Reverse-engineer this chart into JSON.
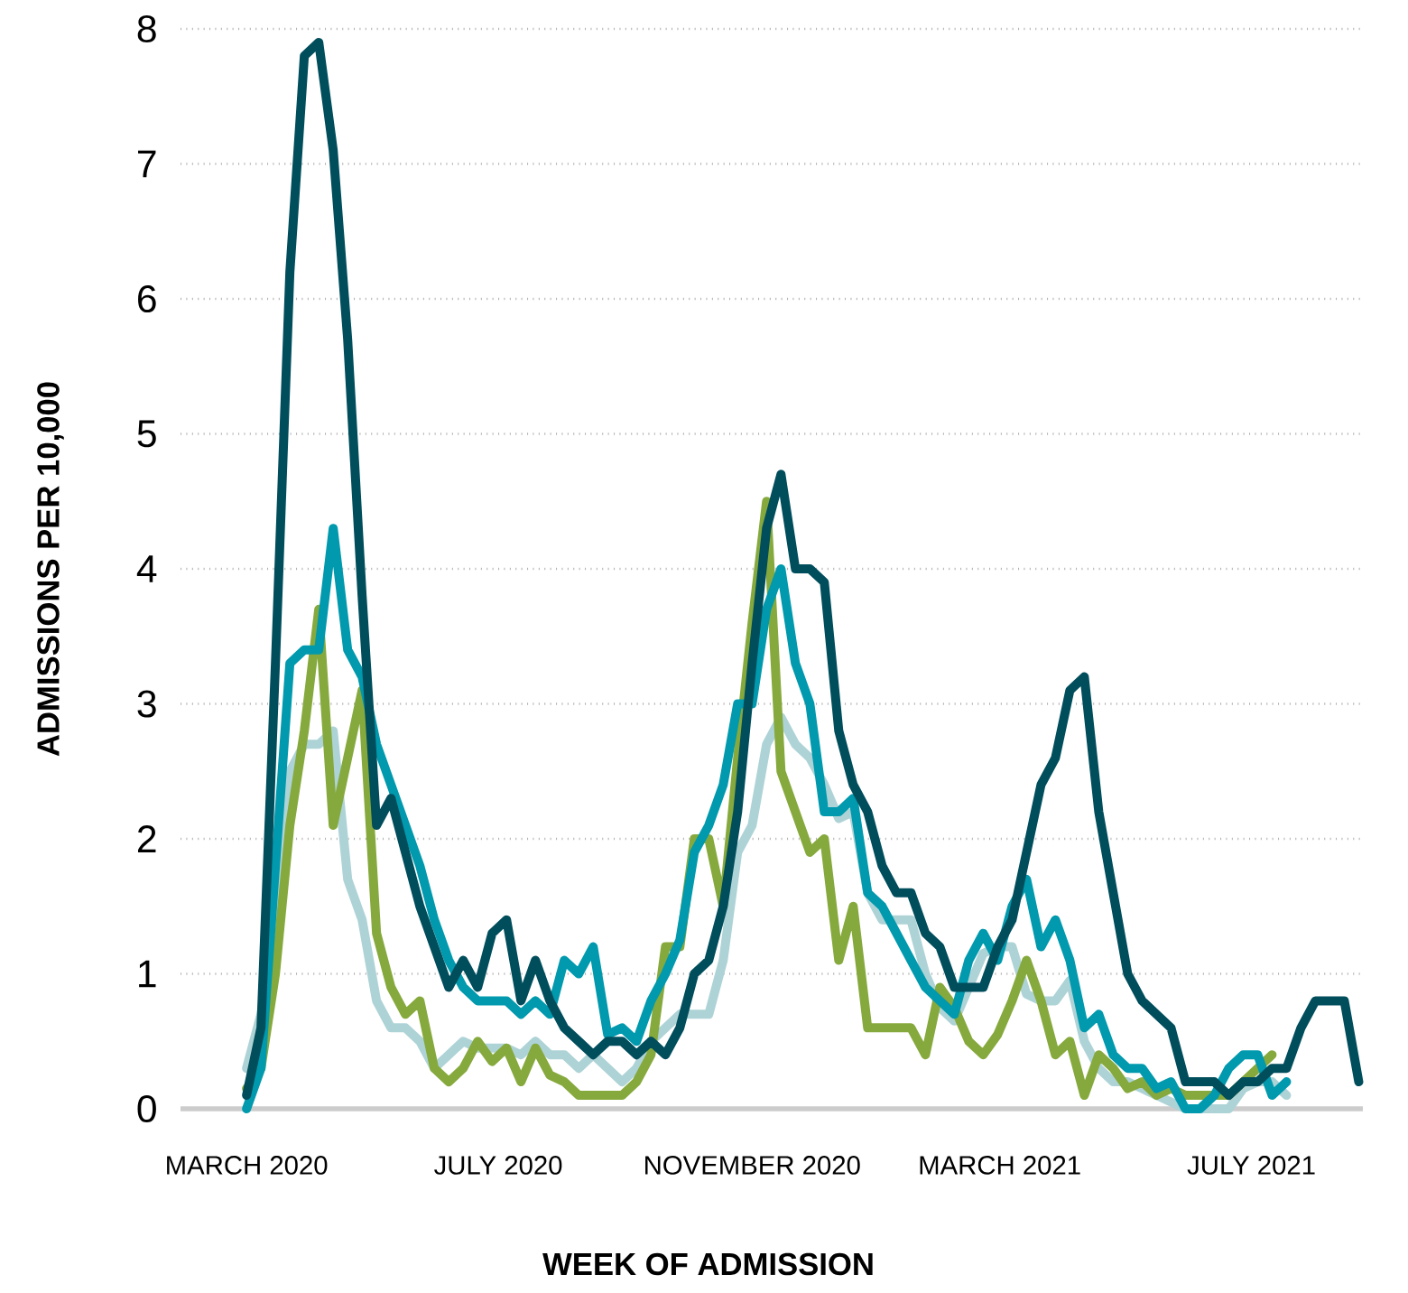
{
  "chart_data": {
    "type": "line",
    "xlabel": "WEEK OF ADMISSION",
    "ylabel": "ADMISSIONS PER 10,000",
    "x": [
      "2020-03-01",
      "2020-03-08",
      "2020-03-15",
      "2020-03-22",
      "2020-03-29",
      "2020-04-05",
      "2020-04-12",
      "2020-04-19",
      "2020-04-26",
      "2020-05-03",
      "2020-05-10",
      "2020-05-17",
      "2020-05-24",
      "2020-05-31",
      "2020-06-07",
      "2020-06-14",
      "2020-06-21",
      "2020-06-28",
      "2020-07-05",
      "2020-07-12",
      "2020-07-19",
      "2020-07-26",
      "2020-08-02",
      "2020-08-09",
      "2020-08-16",
      "2020-08-23",
      "2020-08-30",
      "2020-09-06",
      "2020-09-13",
      "2020-09-20",
      "2020-09-27",
      "2020-10-04",
      "2020-10-11",
      "2020-10-18",
      "2020-10-25",
      "2020-11-01",
      "2020-11-08",
      "2020-11-15",
      "2020-11-22",
      "2020-11-29",
      "2020-12-06",
      "2020-12-13",
      "2020-12-20",
      "2020-12-27",
      "2021-01-03",
      "2021-01-10",
      "2021-01-17",
      "2021-01-24",
      "2021-01-31",
      "2021-02-07",
      "2021-02-14",
      "2021-02-21",
      "2021-02-28",
      "2021-03-07",
      "2021-03-14",
      "2021-03-21",
      "2021-03-28",
      "2021-04-04",
      "2021-04-11",
      "2021-04-18",
      "2021-04-25",
      "2021-05-02",
      "2021-05-09",
      "2021-05-16",
      "2021-05-23",
      "2021-05-30",
      "2021-06-06",
      "2021-06-13",
      "2021-06-20",
      "2021-06-27",
      "2021-07-04",
      "2021-07-11",
      "2021-07-18",
      "2021-07-25",
      "2021-08-01",
      "2021-08-08",
      "2021-08-15",
      "2021-08-22"
    ],
    "series": [
      {
        "color": "#aed3d6",
        "values": [
          0.3,
          0.7,
          1.3,
          2.5,
          2.7,
          2.7,
          2.8,
          1.7,
          1.4,
          0.8,
          0.6,
          0.6,
          0.5,
          0.3,
          0.4,
          0.5,
          0.45,
          0.45,
          0.45,
          0.4,
          0.5,
          0.4,
          0.4,
          0.3,
          0.4,
          0.3,
          0.2,
          0.3,
          0.5,
          0.6,
          0.7,
          0.7,
          0.7,
          1.1,
          1.9,
          2.1,
          2.7,
          2.9,
          2.7,
          2.6,
          2.4,
          2.15,
          2.2,
          1.6,
          1.4,
          1.4,
          1.4,
          1.0,
          0.75,
          0.65,
          0.9,
          1.15,
          1.2,
          1.2,
          0.85,
          0.8,
          0.8,
          0.95,
          0.5,
          0.3,
          0.2,
          0.2,
          0.15,
          0.1,
          0.05,
          0,
          0,
          0,
          0,
          0.15,
          0.2,
          0.2,
          0.1,
          null,
          null,
          null,
          null,
          null
        ]
      },
      {
        "color": "#86a93d",
        "values": [
          0.15,
          0.3,
          1.0,
          2.1,
          2.8,
          3.7,
          2.1,
          2.6,
          3.1,
          1.3,
          0.9,
          0.7,
          0.8,
          0.3,
          0.2,
          0.3,
          0.5,
          0.35,
          0.45,
          0.2,
          0.45,
          0.25,
          0.2,
          0.1,
          0.1,
          0.1,
          0.1,
          0.2,
          0.4,
          1.2,
          1.2,
          2.0,
          2.0,
          1.5,
          2.6,
          3.6,
          4.5,
          2.5,
          2.2,
          1.9,
          2.0,
          1.1,
          1.5,
          0.6,
          0.6,
          0.6,
          0.6,
          0.4,
          0.9,
          0.75,
          0.5,
          0.4,
          0.55,
          0.8,
          1.1,
          0.8,
          0.4,
          0.5,
          0.1,
          0.4,
          0.3,
          0.15,
          0.2,
          0.1,
          0.15,
          0.1,
          0.1,
          0.1,
          0.1,
          0.2,
          0.3,
          0.4,
          null,
          null,
          null,
          null,
          null,
          null
        ]
      },
      {
        "color": "#0099ad",
        "values": [
          0,
          0.3,
          1.8,
          3.3,
          3.4,
          3.4,
          4.3,
          3.4,
          3.2,
          2.7,
          2.4,
          2.1,
          1.8,
          1.4,
          1.1,
          0.9,
          0.8,
          0.8,
          0.8,
          0.7,
          0.8,
          0.7,
          1.1,
          1.0,
          1.2,
          0.55,
          0.6,
          0.5,
          0.8,
          1.0,
          1.25,
          1.9,
          2.1,
          2.4,
          3.0,
          3.0,
          3.7,
          4.0,
          3.3,
          3.0,
          2.2,
          2.2,
          2.3,
          1.6,
          1.5,
          1.3,
          1.1,
          0.9,
          0.8,
          0.7,
          1.1,
          1.3,
          1.1,
          1.5,
          1.7,
          1.2,
          1.4,
          1.1,
          0.6,
          0.7,
          0.4,
          0.3,
          0.3,
          0.15,
          0.2,
          0,
          0,
          0.1,
          0.3,
          0.4,
          0.4,
          0.1,
          0.2,
          null,
          null,
          null,
          null,
          null
        ]
      },
      {
        "color": "#004d5c",
        "values": [
          0.1,
          0.6,
          3.3,
          6.2,
          7.8,
          7.9,
          7.1,
          5.7,
          3.8,
          2.1,
          2.3,
          1.9,
          1.5,
          1.2,
          0.9,
          1.1,
          0.9,
          1.3,
          1.4,
          0.8,
          1.1,
          0.8,
          0.6,
          0.5,
          0.4,
          0.5,
          0.5,
          0.4,
          0.5,
          0.4,
          0.6,
          1.0,
          1.1,
          1.5,
          2.2,
          3.3,
          4.3,
          4.7,
          4.0,
          4.0,
          3.9,
          2.8,
          2.4,
          2.2,
          1.8,
          1.6,
          1.6,
          1.3,
          1.2,
          0.9,
          0.9,
          0.9,
          1.2,
          1.4,
          1.9,
          2.4,
          2.6,
          3.1,
          3.2,
          2.2,
          1.6,
          1.0,
          0.8,
          0.7,
          0.6,
          0.2,
          0.2,
          0.2,
          0.1,
          0.2,
          0.2,
          0.3,
          0.3,
          0.6,
          0.8,
          0.8,
          0.8,
          0.2
        ]
      }
    ],
    "xlim": [
      "2020-01-29",
      "2021-08-24"
    ],
    "ylim": [
      0,
      8
    ],
    "xticks": [
      {
        "value": "2020-03-01",
        "label": "MARCH 2020"
      },
      {
        "value": "2020-07-01",
        "label": "JULY 2020"
      },
      {
        "value": "2020-11-01",
        "label": "NOVEMBER 2020"
      },
      {
        "value": "2021-03-01",
        "label": "MARCH 2021"
      },
      {
        "value": "2021-07-01",
        "label": "JULY 2021"
      }
    ],
    "yticks": [
      0,
      1,
      2,
      3,
      4,
      5,
      6,
      7,
      8
    ],
    "grid": "y"
  }
}
